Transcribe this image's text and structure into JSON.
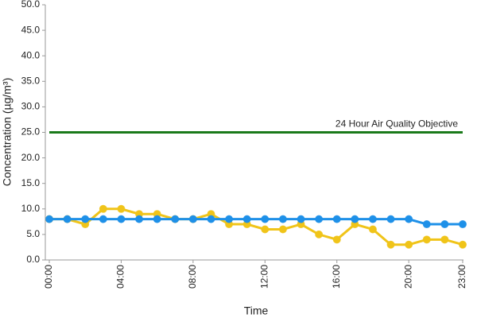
{
  "chart_data": {
    "type": "line",
    "x_label": "Time",
    "y_label": "Concentration (µg/m³)",
    "categories": [
      "00:00",
      null,
      null,
      null,
      "04:00",
      null,
      null,
      null,
      "08:00",
      null,
      null,
      null,
      "12:00",
      null,
      null,
      null,
      "16:00",
      null,
      null,
      null,
      "20:00",
      null,
      null,
      "23:00"
    ],
    "series": [
      {
        "name": "24 Hour Air Quality Objective",
        "color": "#1a7a1a",
        "markers": false,
        "values": [
          25,
          25,
          25,
          25,
          25,
          25,
          25,
          25,
          25,
          25,
          25,
          25,
          25,
          25,
          25,
          25,
          25,
          25,
          25,
          25,
          25,
          25,
          25,
          25
        ]
      },
      {
        "color": "#f0c419",
        "markers": true,
        "values": [
          8,
          8,
          7,
          10,
          10,
          9,
          9,
          8,
          8,
          9,
          7,
          7,
          6,
          6,
          7,
          5,
          4,
          7,
          6,
          3,
          3,
          4,
          4,
          3
        ]
      },
      {
        "color": "#1e90e8",
        "markers": true,
        "values": [
          8,
          8,
          8,
          8,
          8,
          8,
          8,
          8,
          8,
          8,
          8,
          8,
          8,
          8,
          8,
          8,
          8,
          8,
          8,
          8,
          8,
          7,
          7,
          7
        ]
      }
    ],
    "ylim": [
      0,
      50
    ],
    "yticks": [
      {
        "value": 0,
        "label": "0.0"
      },
      {
        "value": 5,
        "label": "5.0"
      },
      {
        "value": 10,
        "label": "10.0"
      },
      {
        "value": 15,
        "label": "15.0"
      },
      {
        "value": 20,
        "label": "20.0"
      },
      {
        "value": 25,
        "label": "25.0"
      },
      {
        "value": 30,
        "label": "30.0"
      },
      {
        "value": 35,
        "label": "35.0"
      },
      {
        "value": 40,
        "label": "40.0"
      },
      {
        "value": 45,
        "label": "45.0"
      },
      {
        "value": 50,
        "label": "50.0"
      }
    ],
    "grid": false
  }
}
